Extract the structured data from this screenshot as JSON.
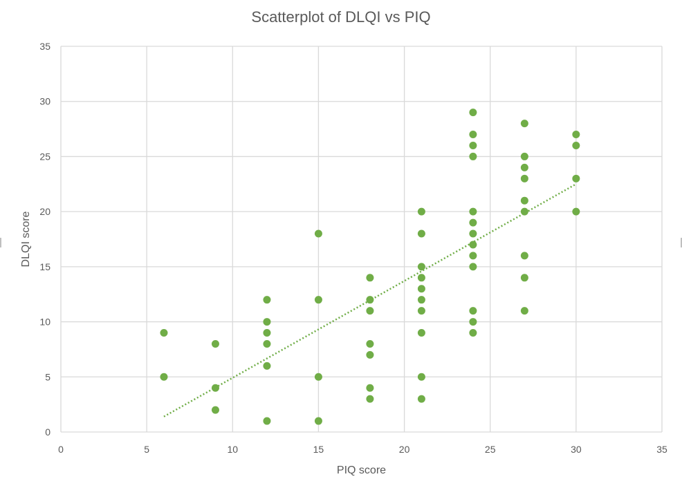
{
  "chart_data": {
    "type": "scatter",
    "title": "Scatterplot of DLQI vs PIQ",
    "xlabel": "PIQ score",
    "ylabel": "DLQI score",
    "xlim": [
      0,
      35
    ],
    "ylim": [
      0,
      35
    ],
    "xticks": [
      0,
      5,
      10,
      15,
      20,
      25,
      30,
      35
    ],
    "yticks": [
      0,
      5,
      10,
      15,
      20,
      25,
      30,
      35
    ],
    "grid": true,
    "legend": "none",
    "marker_color": "#70ad47",
    "trendline": {
      "type": "linear",
      "style": "dotted",
      "color": "#70ad47",
      "x_range": [
        6,
        30
      ],
      "y_at_range": [
        1.4,
        22.5
      ]
    },
    "points": [
      [
        6,
        9
      ],
      [
        6,
        5
      ],
      [
        9,
        8
      ],
      [
        9,
        4
      ],
      [
        9,
        2
      ],
      [
        12,
        12
      ],
      [
        12,
        10
      ],
      [
        12,
        9
      ],
      [
        12,
        8
      ],
      [
        12,
        6
      ],
      [
        12,
        1
      ],
      [
        15,
        18
      ],
      [
        15,
        12
      ],
      [
        15,
        5
      ],
      [
        15,
        1
      ],
      [
        18,
        14
      ],
      [
        18,
        12
      ],
      [
        18,
        11
      ],
      [
        18,
        8
      ],
      [
        18,
        7
      ],
      [
        18,
        4
      ],
      [
        18,
        3
      ],
      [
        21,
        20
      ],
      [
        21,
        18
      ],
      [
        21,
        15
      ],
      [
        21,
        14
      ],
      [
        21,
        13
      ],
      [
        21,
        12
      ],
      [
        21,
        11
      ],
      [
        21,
        9
      ],
      [
        21,
        5
      ],
      [
        21,
        3
      ],
      [
        24,
        29
      ],
      [
        24,
        27
      ],
      [
        24,
        26
      ],
      [
        24,
        25
      ],
      [
        24,
        20
      ],
      [
        24,
        19
      ],
      [
        24,
        18
      ],
      [
        24,
        17
      ],
      [
        24,
        16
      ],
      [
        24,
        15
      ],
      [
        24,
        11
      ],
      [
        24,
        10
      ],
      [
        24,
        9
      ],
      [
        27,
        28
      ],
      [
        27,
        25
      ],
      [
        27,
        24
      ],
      [
        27,
        23
      ],
      [
        27,
        21
      ],
      [
        27,
        20
      ],
      [
        27,
        16
      ],
      [
        27,
        14
      ],
      [
        27,
        11
      ],
      [
        30,
        27
      ],
      [
        30,
        26
      ],
      [
        30,
        23
      ],
      [
        30,
        20
      ]
    ]
  }
}
